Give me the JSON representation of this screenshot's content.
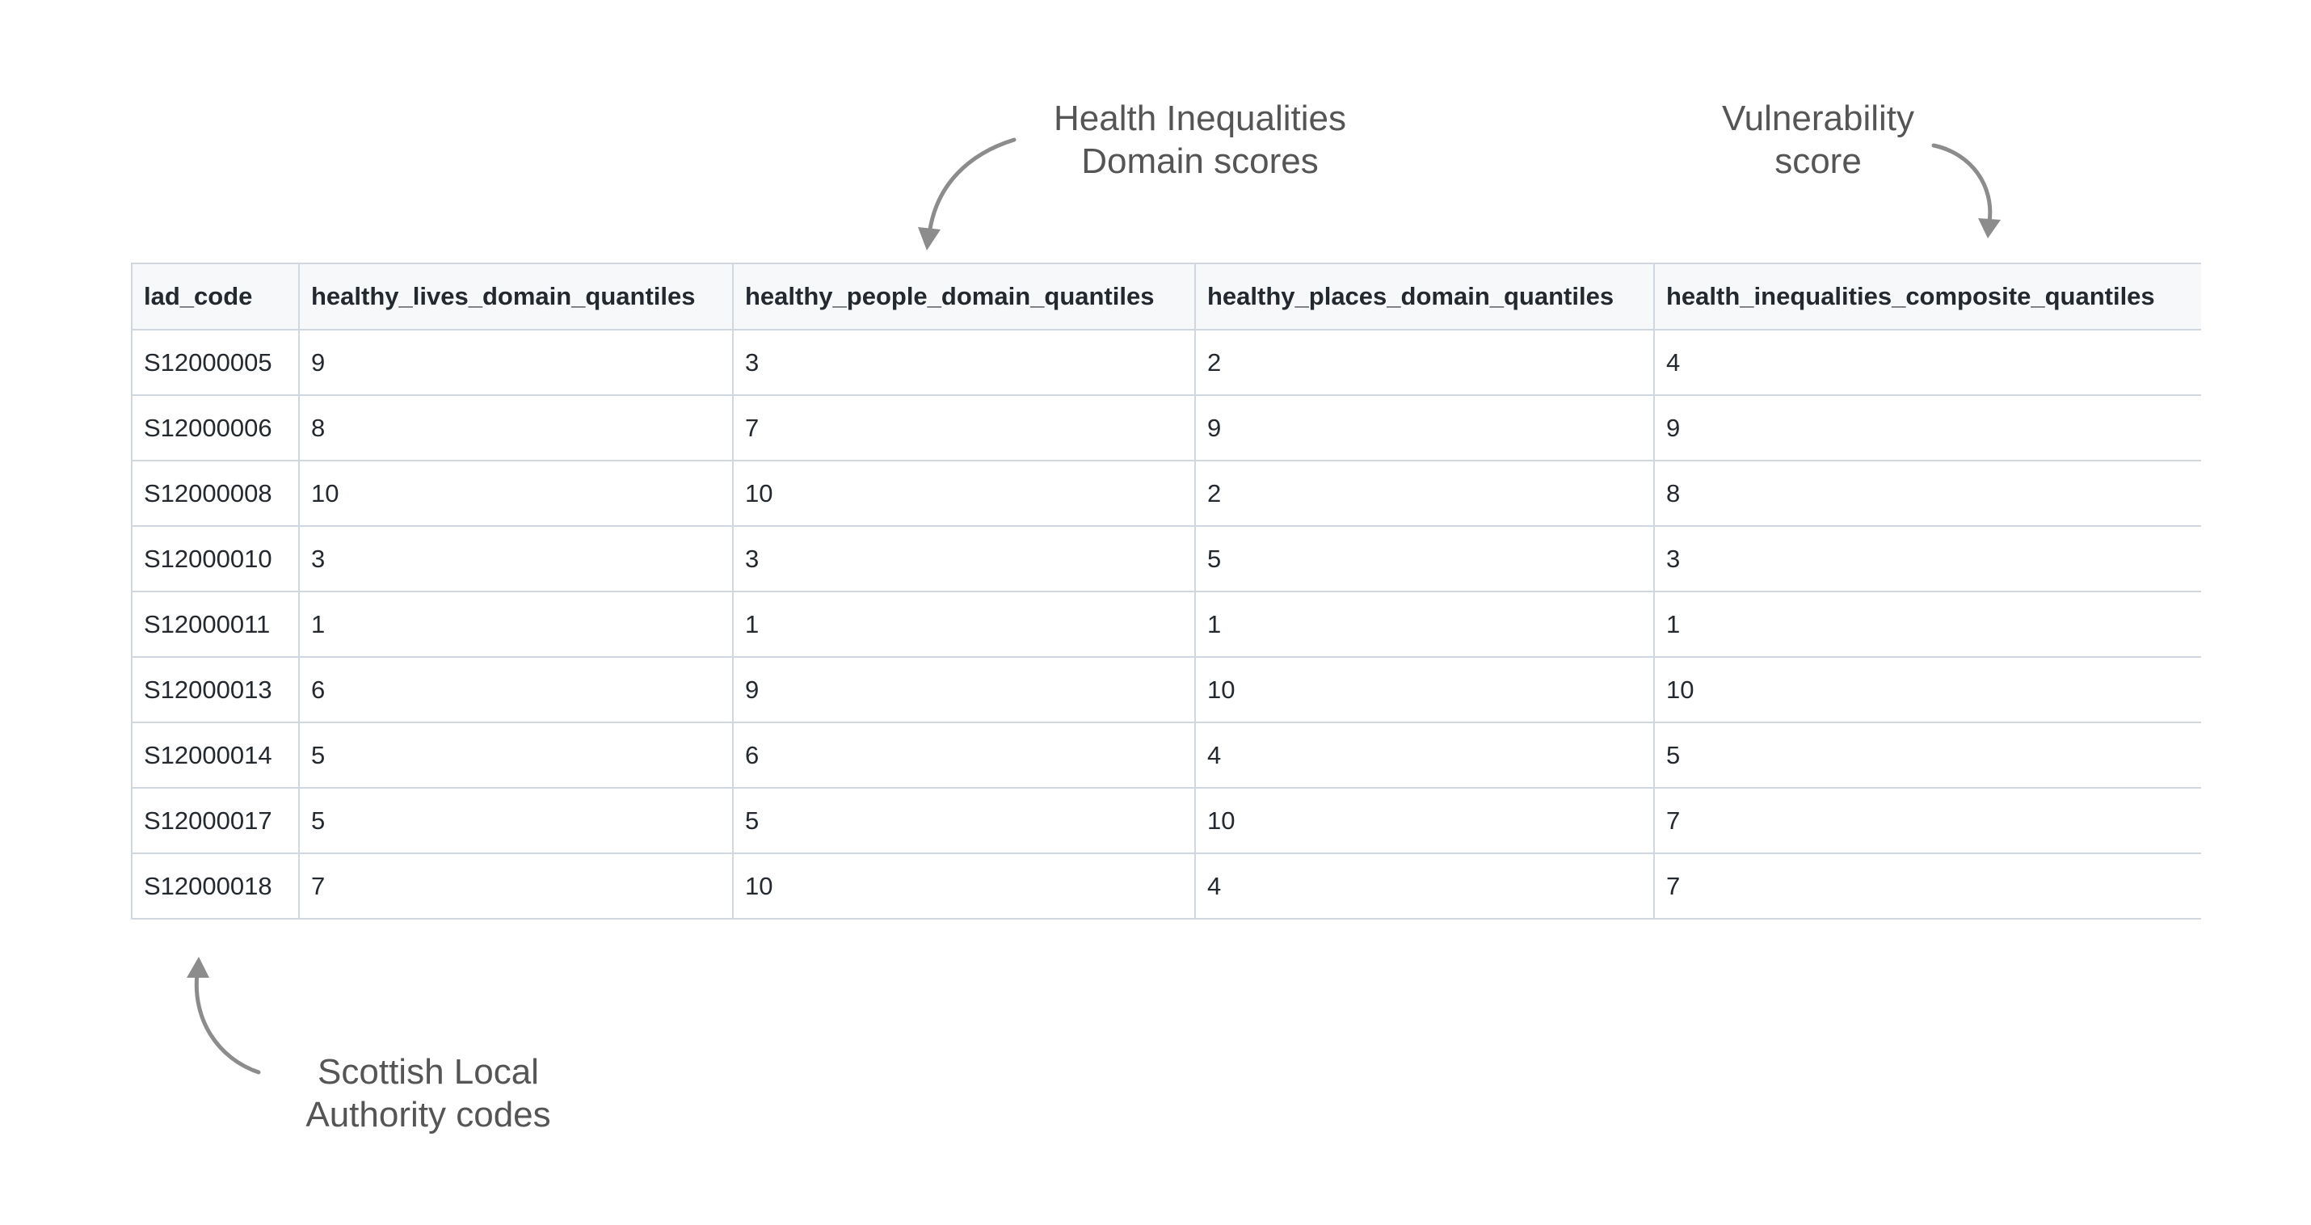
{
  "annotations": {
    "health_domains": [
      "Health Inequalities",
      "Domain scores"
    ],
    "vulnerability": [
      "Vulnerability",
      "score"
    ],
    "local_authority": [
      "Scottish Local",
      "Authority codes"
    ]
  },
  "table": {
    "columns": [
      "lad_code",
      "healthy_lives_domain_quantiles",
      "healthy_people_domain_quantiles",
      "healthy_places_domain_quantiles",
      "health_inequalities_composite_quantiles"
    ],
    "rows": [
      [
        "S12000005",
        "9",
        "3",
        "2",
        "4"
      ],
      [
        "S12000006",
        "8",
        "7",
        "9",
        "9"
      ],
      [
        "S12000008",
        "10",
        "10",
        "2",
        "8"
      ],
      [
        "S12000010",
        "3",
        "3",
        "5",
        "3"
      ],
      [
        "S12000011",
        "1",
        "1",
        "1",
        "1"
      ],
      [
        "S12000013",
        "6",
        "9",
        "10",
        "10"
      ],
      [
        "S12000014",
        "5",
        "6",
        "4",
        "5"
      ],
      [
        "S12000017",
        "5",
        "5",
        "10",
        "7"
      ],
      [
        "S12000018",
        "7",
        "10",
        "4",
        "7"
      ]
    ]
  },
  "colors": {
    "border": "#d0d7de",
    "header_bg": "#f6f8fa",
    "text": "#24292f",
    "annotation": "#555555",
    "arrow": "#8c8c8c"
  }
}
